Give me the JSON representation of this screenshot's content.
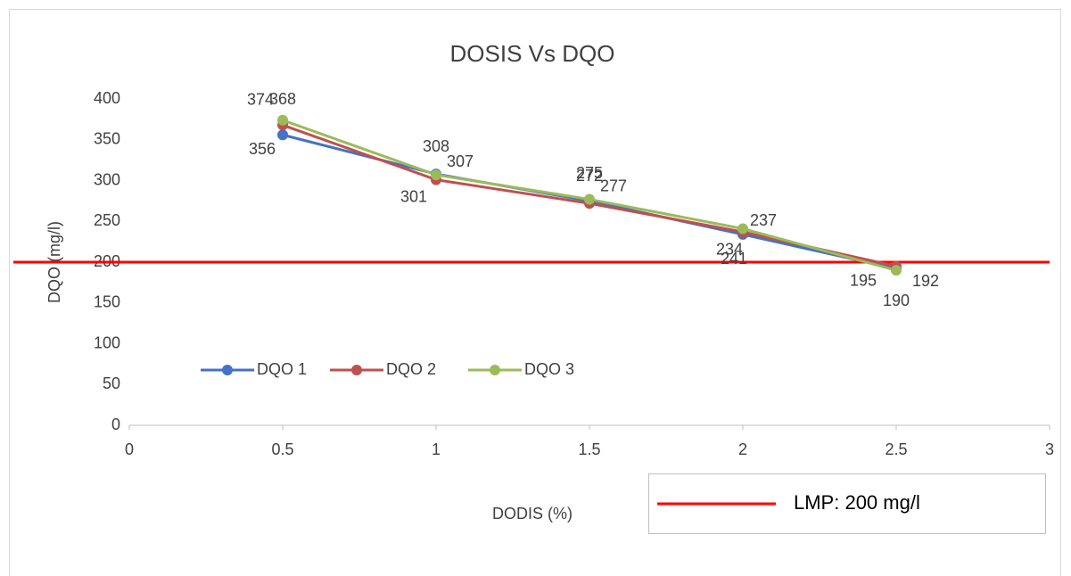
{
  "chart_data": {
    "type": "line",
    "title": "DOSIS Vs DQO",
    "x_label": "DODIS (%)",
    "y_label": "DQO (mg/l)",
    "x": [
      0.5,
      1,
      1.5,
      2,
      2.5
    ],
    "series": [
      {
        "name": "DQO 1",
        "color": "#4472c4",
        "values": [
          356,
          308,
          275,
          234,
          192
        ]
      },
      {
        "name": "DQO 2",
        "color": "#c0504d",
        "values": [
          368,
          301,
          272,
          237,
          195
        ]
      },
      {
        "name": "DQO 3",
        "color": "#9bbb59",
        "values": [
          374,
          307,
          277,
          241,
          190
        ]
      }
    ],
    "reference_line": {
      "name": "LMP: 200 mg/l",
      "value": 200,
      "color": "#ff0000"
    },
    "xlim": [
      0,
      3
    ],
    "xticks": [
      0,
      0.5,
      1,
      1.5,
      2,
      2.5,
      3
    ],
    "ylim": [
      0,
      400
    ],
    "yticks": [
      0,
      50,
      100,
      150,
      200,
      250,
      300,
      350,
      400
    ],
    "grid": false,
    "legend": "bottom-left"
  }
}
